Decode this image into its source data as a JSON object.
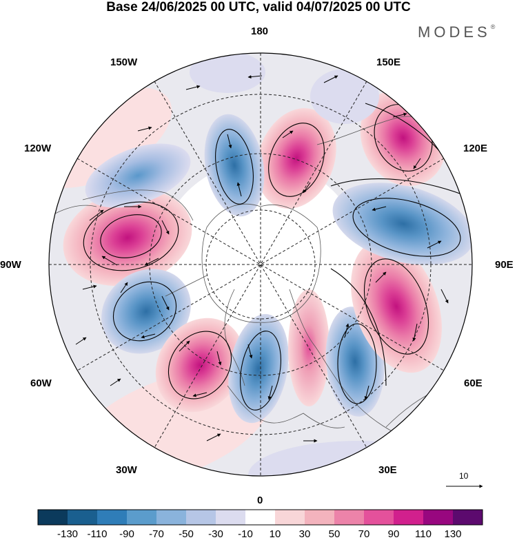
{
  "title": "Base 24/06/2025 00 UTC, valid 04/07/2025 00 UTC",
  "brand": "MODES",
  "brand_mark": "®",
  "longitude_labels": {
    "lon_180": "180",
    "lon_150E": "150E",
    "lon_120E": "120E",
    "lon_90E": "90E",
    "lon_60E": "60E",
    "lon_30E": "30E",
    "lon_0": "0",
    "lon_30W": "30W",
    "lon_60W": "60W",
    "lon_90W": "90W",
    "lon_120W": "120W",
    "lon_150W": "150W"
  },
  "reference_vector": {
    "value": "10"
  },
  "colorbar": {
    "colors": [
      "#0b3a5c",
      "#1a5f8f",
      "#2f7db8",
      "#5b9ccc",
      "#8ab3dc",
      "#b6c6e6",
      "#dcdcef",
      "#ffffff",
      "#f8d6d8",
      "#f3b3bd",
      "#ec83a9",
      "#e4519b",
      "#d1208d",
      "#98077f",
      "#5c0a6e"
    ],
    "labels": [
      "-130",
      "-110",
      "-90",
      "-70",
      "-50",
      "-30",
      "-10",
      "10",
      "30",
      "50",
      "70",
      "90",
      "110",
      "130"
    ]
  },
  "anomaly_centers": [
    {
      "type": "positive",
      "lon": "95W",
      "intensity": 110
    },
    {
      "type": "negative",
      "lon": "70W",
      "intensity": -90
    },
    {
      "type": "positive",
      "lon": "40W",
      "intensity": 90
    },
    {
      "type": "negative",
      "lon": "15W",
      "intensity": -70
    },
    {
      "type": "positive",
      "lon": "10E",
      "intensity": 50
    },
    {
      "type": "negative",
      "lon": "30E",
      "intensity": -70
    },
    {
      "type": "positive",
      "lon": "75E",
      "intensity": 90
    },
    {
      "type": "negative",
      "lon": "95E",
      "intensity": -70
    },
    {
      "type": "positive",
      "lon": "130E",
      "intensity": 70
    },
    {
      "type": "positive",
      "lon": "165E",
      "intensity": 70
    },
    {
      "type": "negative",
      "lon": "165W",
      "intensity": -70
    },
    {
      "type": "negative",
      "lon": "130W",
      "intensity": -50
    }
  ]
}
